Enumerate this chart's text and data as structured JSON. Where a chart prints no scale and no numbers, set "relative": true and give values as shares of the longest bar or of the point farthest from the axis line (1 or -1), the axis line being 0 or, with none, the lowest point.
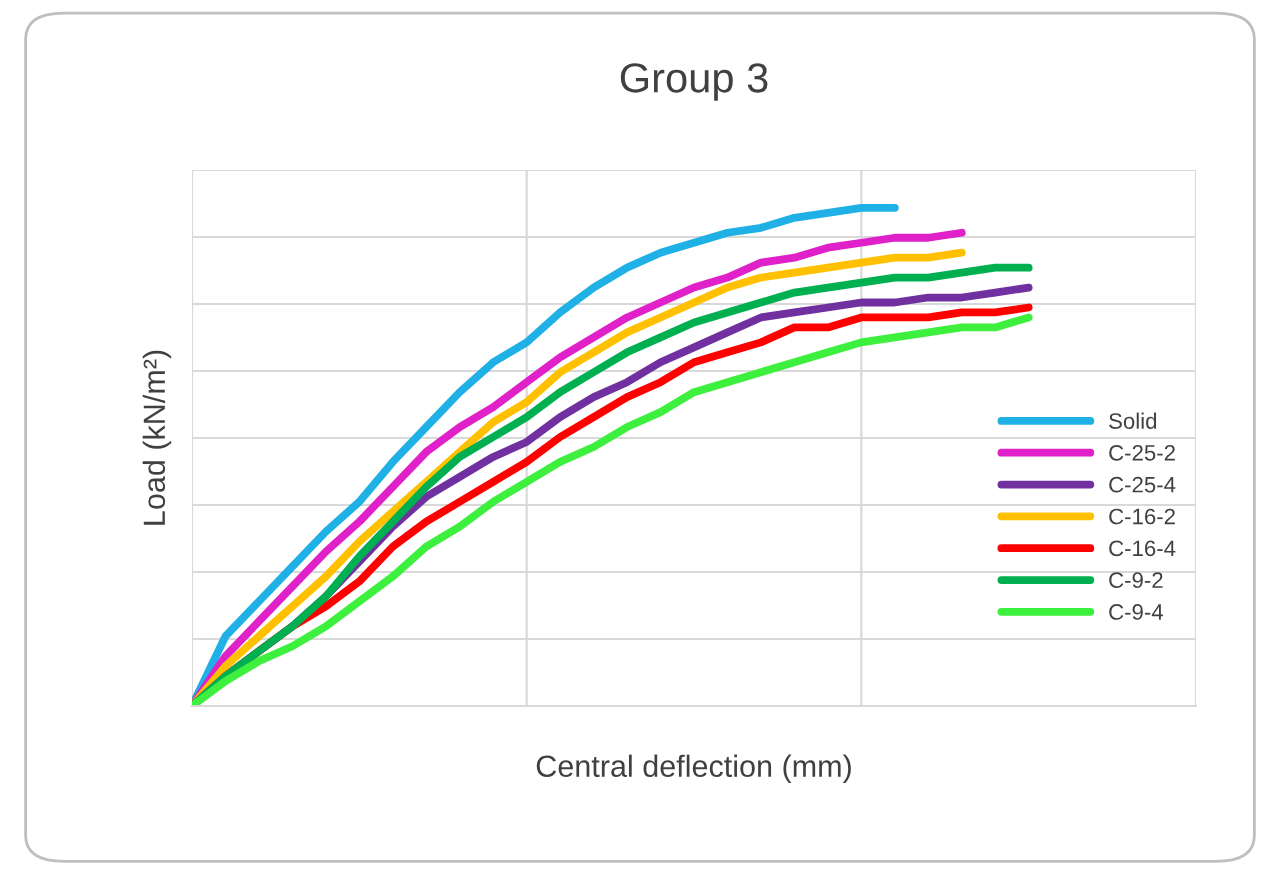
{
  "chart_data": {
    "type": "line",
    "title": "Group 3",
    "xlabel": "Central deflection (mm)",
    "ylabel": "Load (kN/m²)",
    "relative": true,
    "grid": true,
    "legend": "right",
    "marker": "none",
    "line_style": "solid",
    "categories": [
      null,
      null,
      null,
      null,
      null,
      null,
      null,
      null,
      null,
      null,
      null,
      null,
      null,
      null,
      null,
      null,
      null,
      null,
      null,
      null,
      null,
      null,
      null,
      null,
      null,
      null,
      null,
      null,
      null,
      null,
      null
    ],
    "series": [
      {
        "name": "Solid",
        "color": "#1fb0e6",
        "values": [
          0,
          0.14,
          0.21,
          0.28,
          0.35,
          0.41,
          0.49,
          0.56,
          0.63,
          0.69,
          0.73,
          0.79,
          0.84,
          0.88,
          0.91,
          0.93,
          0.95,
          0.96,
          0.98,
          0.99,
          1.0,
          1.0,
          null,
          null,
          null,
          null,
          null,
          null,
          null,
          null,
          null
        ]
      },
      {
        "name": "C-25-2",
        "color": "#e020c8",
        "values": [
          0,
          0.1,
          0.17,
          0.24,
          0.31,
          0.37,
          0.44,
          0.51,
          0.56,
          0.6,
          0.65,
          0.7,
          0.74,
          0.78,
          0.81,
          0.84,
          0.86,
          0.89,
          0.9,
          0.92,
          0.93,
          0.94,
          0.94,
          0.95,
          null,
          null,
          null,
          null,
          null,
          null,
          null
        ]
      },
      {
        "name": "C-25-4",
        "color": "#7030a0",
        "values": [
          0,
          0.06,
          0.11,
          0.16,
          0.22,
          0.29,
          0.36,
          0.42,
          0.46,
          0.5,
          0.53,
          0.58,
          0.62,
          0.65,
          0.69,
          0.72,
          0.75,
          0.78,
          0.79,
          0.8,
          0.81,
          0.81,
          0.82,
          0.82,
          0.83,
          0.84,
          null,
          null,
          null,
          null,
          null
        ]
      },
      {
        "name": "C-16-2",
        "color": "#ffc000",
        "values": [
          0,
          0.08,
          0.14,
          0.2,
          0.26,
          0.33,
          0.39,
          0.45,
          0.51,
          0.57,
          0.61,
          0.67,
          0.71,
          0.75,
          0.78,
          0.81,
          0.84,
          0.86,
          0.87,
          0.88,
          0.89,
          0.9,
          0.9,
          0.91,
          null,
          null,
          null,
          null,
          null,
          null,
          null
        ]
      },
      {
        "name": "C-16-4",
        "color": "#ff0000",
        "values": [
          0,
          0.06,
          0.11,
          0.16,
          0.2,
          0.25,
          0.32,
          0.37,
          0.41,
          0.45,
          0.49,
          0.54,
          0.58,
          0.62,
          0.65,
          0.69,
          0.71,
          0.73,
          0.76,
          0.76,
          0.78,
          0.78,
          0.78,
          0.79,
          0.79,
          0.8,
          null,
          null,
          null,
          null,
          null
        ]
      },
      {
        "name": "C-9-2",
        "color": "#00b050",
        "values": [
          0,
          0.06,
          0.11,
          0.16,
          0.22,
          0.3,
          0.37,
          0.44,
          0.5,
          0.54,
          0.58,
          0.63,
          0.67,
          0.71,
          0.74,
          0.77,
          0.79,
          0.81,
          0.83,
          0.84,
          0.85,
          0.86,
          0.86,
          0.87,
          0.88,
          0.88,
          null,
          null,
          null,
          null,
          null
        ]
      },
      {
        "name": "C-9-4",
        "color": "#3ef03e",
        "values": [
          0,
          0.05,
          0.09,
          0.12,
          0.16,
          0.21,
          0.26,
          0.32,
          0.36,
          0.41,
          0.45,
          0.49,
          0.52,
          0.56,
          0.59,
          0.63,
          0.65,
          0.67,
          0.69,
          0.71,
          0.73,
          0.74,
          0.75,
          0.76,
          0.76,
          0.78,
          null,
          null,
          null,
          null,
          null
        ]
      }
    ]
  }
}
